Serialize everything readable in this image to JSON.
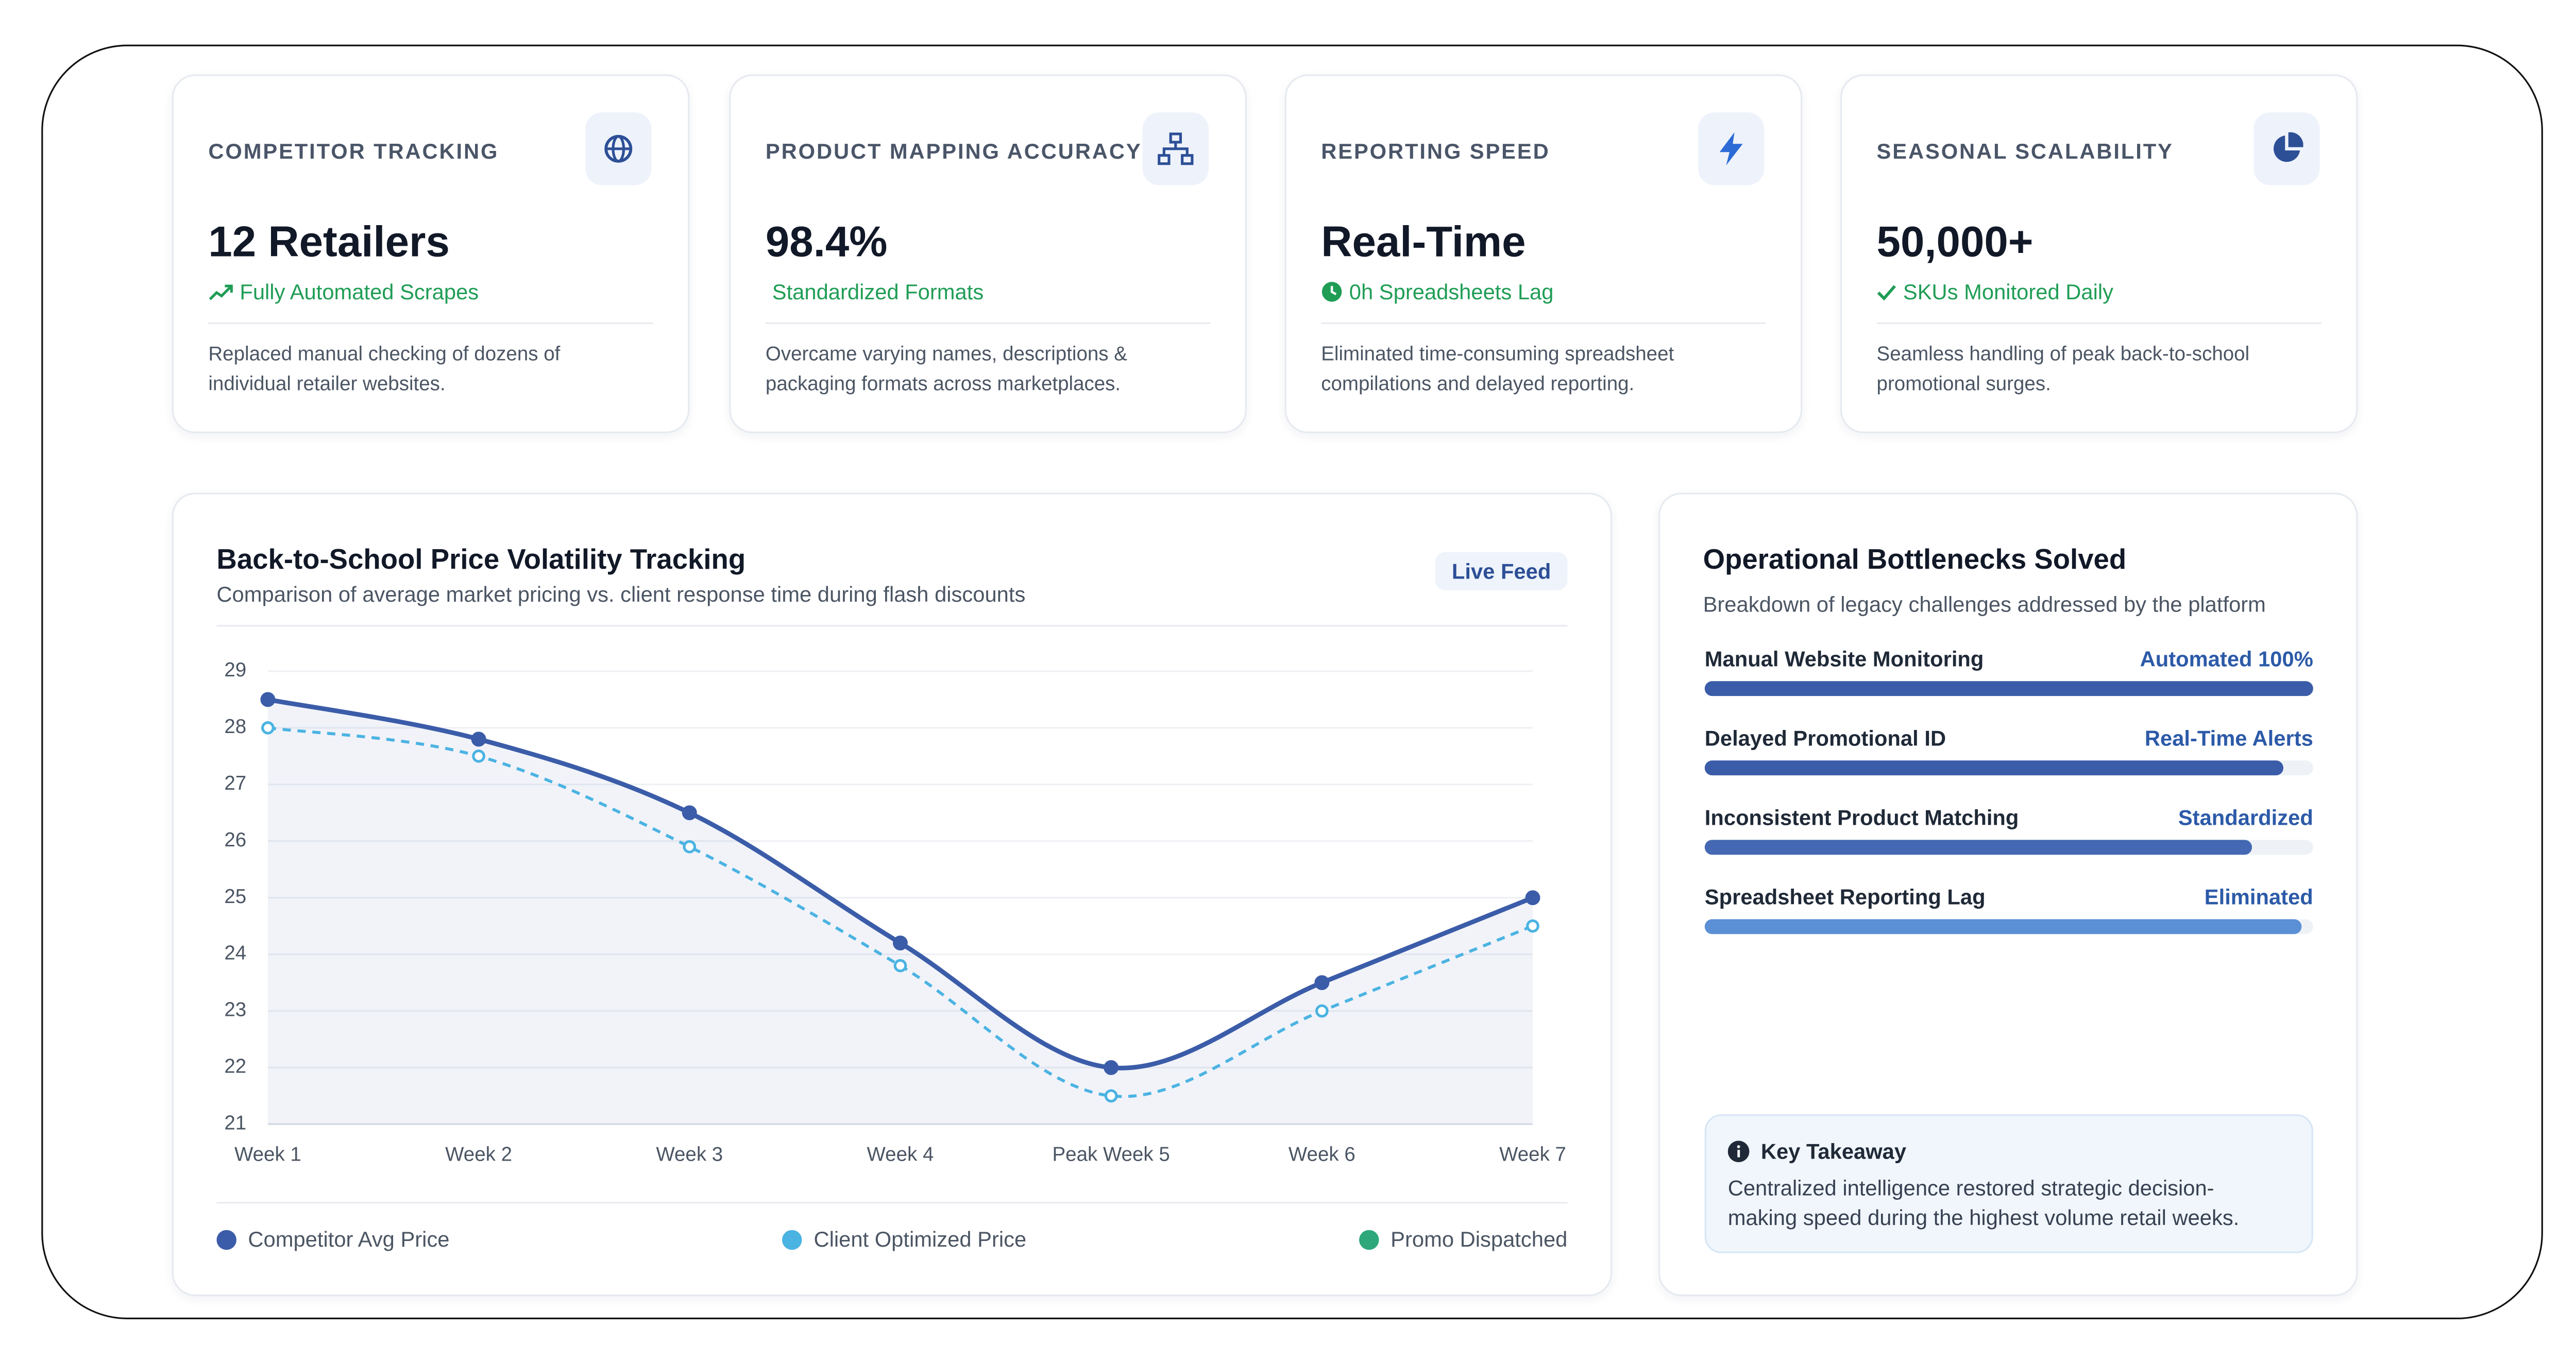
{
  "cards": [
    {
      "label": "COMPETITOR TRACKING",
      "value": "12 Retailers",
      "highlight": "Fully Automated Scrapes",
      "description": "Replaced manual checking of dozens of individual retailer websites."
    },
    {
      "label": "PRODUCT MAPPING ACCURACY",
      "value": "98.4%",
      "highlight": "Standardized Formats",
      "description": "Overcame varying names, descriptions & packaging formats across marketplaces."
    },
    {
      "label": "REPORTING SPEED",
      "value": "Real-Time",
      "highlight": "0h Spreadsheets Lag",
      "description": "Eliminated time-consuming spreadsheet compilations and delayed reporting."
    },
    {
      "label": "SEASONAL SCALABILITY",
      "value": "50,000+",
      "highlight": "SKUs Monitored Daily",
      "description": "Seamless handling of peak back-to-school promotional surges."
    }
  ],
  "chart_data": {
    "type": "line",
    "title": "Back-to-School Price Volatility Tracking",
    "subtitle": "Comparison of average market pricing vs. client response time during flash discounts",
    "badge": "Live Feed",
    "categories": [
      "Week 1",
      "Week 2",
      "Week 3",
      "Week 4",
      "Peak Week 5",
      "Week 6",
      "Week 7"
    ],
    "series": [
      {
        "name": "Competitor Avg Price",
        "color": "#3b5ca8",
        "dashed": false,
        "fill": true,
        "values": [
          28.5,
          27.8,
          26.5,
          24.2,
          22.0,
          23.5,
          25.0
        ]
      },
      {
        "name": "Client Optimized Price",
        "color": "#4bb3e2",
        "dashed": true,
        "fill": false,
        "values": [
          28.0,
          27.5,
          25.9,
          23.8,
          21.5,
          23.0,
          24.5
        ]
      },
      {
        "name": "Promo Dispatched",
        "color": "#2ea87a",
        "dashed": false,
        "fill": false,
        "values": [
          null,
          null,
          null,
          null,
          null,
          null,
          null
        ]
      }
    ],
    "ylim": [
      21,
      29
    ],
    "yticks": [
      21,
      22,
      23,
      24,
      25,
      26,
      27,
      28,
      29
    ],
    "grid": true
  },
  "bottlenecks": {
    "title": "Operational Bottlenecks Solved",
    "subtitle": "Breakdown of legacy challenges addressed by the platform",
    "items": [
      {
        "label": "Manual Website Monitoring",
        "status": "Automated 100%",
        "value": 100,
        "color": "#3b5ca8"
      },
      {
        "label": "Delayed Promotional ID",
        "status": "Real-Time Alerts",
        "value": 95,
        "color": "#3b5ca8"
      },
      {
        "label": "Inconsistent Product Matching",
        "status": "Standardized",
        "value": 90,
        "color": "#4468b3"
      },
      {
        "label": "Spreadsheet Reporting Lag",
        "status": "Eliminated",
        "value": 98,
        "color": "#5b8fd6"
      }
    ]
  },
  "takeaway": {
    "title": "Key Takeaway",
    "text": "Centralized intelligence restored strategic decision-making speed during the highest volume retail weeks."
  }
}
